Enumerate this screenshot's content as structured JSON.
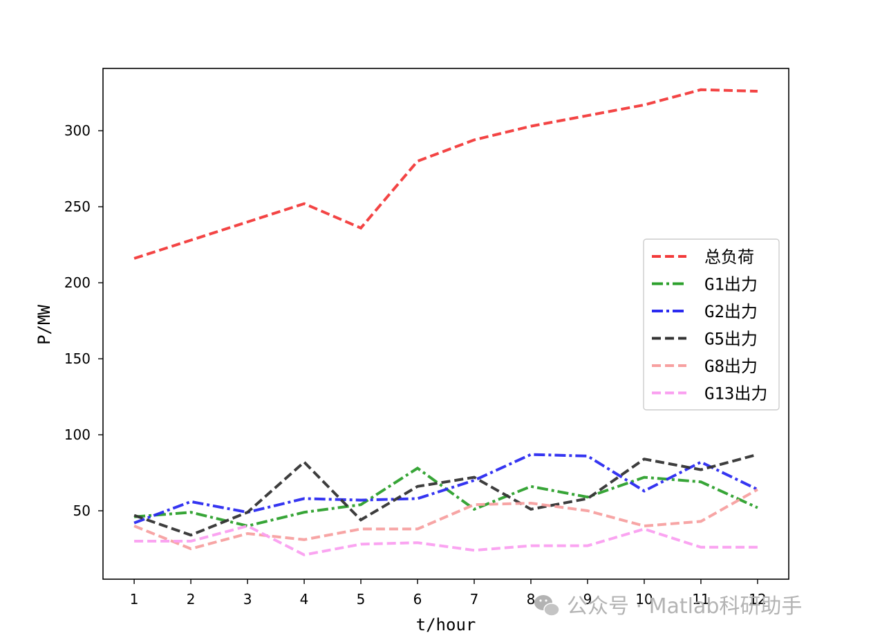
{
  "chart_data": {
    "type": "line",
    "title": "",
    "xlabel": "t/hour",
    "ylabel": "P/MW",
    "x": [
      1,
      2,
      3,
      4,
      5,
      6,
      7,
      8,
      9,
      10,
      11,
      12
    ],
    "xlim": [
      0.45,
      12.55
    ],
    "ylim": [
      5,
      341
    ],
    "xticks": [
      1,
      2,
      3,
      4,
      5,
      6,
      7,
      8,
      9,
      10,
      11,
      12
    ],
    "yticks": [
      50,
      100,
      150,
      200,
      250,
      300
    ],
    "grid": false,
    "legend_position": "center-right",
    "series": [
      {
        "name": "总负荷",
        "color": "#f23a3a",
        "dash": "dashed",
        "values": [
          216,
          228,
          240,
          252,
          236,
          280,
          294,
          303,
          310,
          317,
          327,
          326
        ]
      },
      {
        "name": "G1出力",
        "color": "#2ca02c",
        "dash": "dashdot",
        "values": [
          46,
          49,
          40,
          49,
          54,
          78,
          51,
          66,
          59,
          72,
          69,
          52
        ]
      },
      {
        "name": "G2出力",
        "color": "#2a2af0",
        "dash": "dashdot",
        "values": [
          42,
          56,
          49,
          58,
          57,
          58,
          70,
          87,
          86,
          63,
          82,
          64
        ]
      },
      {
        "name": "G5出力",
        "color": "#333333",
        "dash": "dashed",
        "values": [
          47,
          34,
          49,
          82,
          44,
          66,
          72,
          51,
          58,
          84,
          77,
          87
        ]
      },
      {
        "name": "G8出力",
        "color": "#f7a0a0",
        "dash": "dashed",
        "values": [
          40,
          25,
          35,
          31,
          38,
          38,
          54,
          55,
          50,
          40,
          43,
          64
        ]
      },
      {
        "name": "G13出力",
        "color": "#fa9ff0",
        "dash": "dashed",
        "values": [
          30,
          30,
          40,
          21,
          28,
          29,
          24,
          27,
          27,
          38,
          26,
          26
        ]
      }
    ]
  },
  "watermark": {
    "text": "公众号 · Matlab科研助手",
    "icon": "wechat-icon"
  }
}
